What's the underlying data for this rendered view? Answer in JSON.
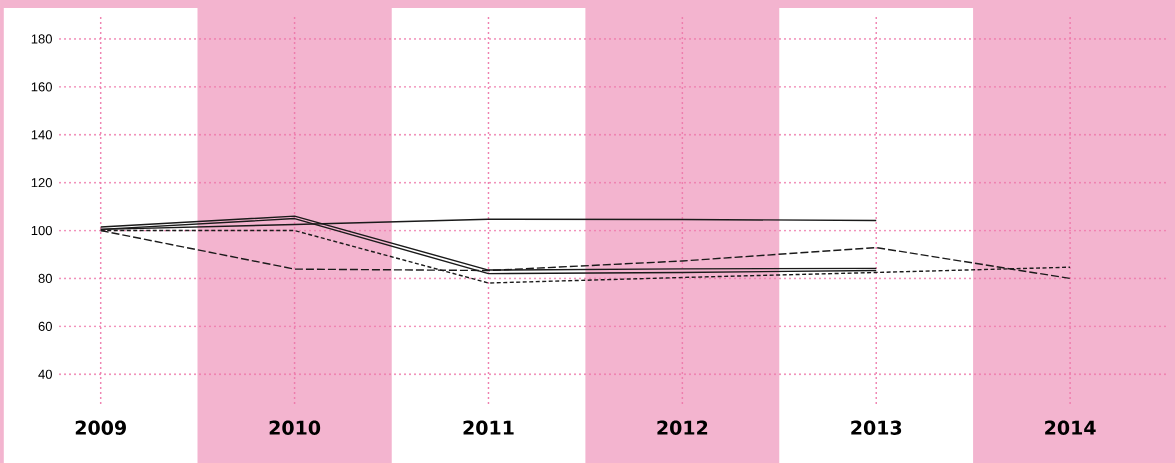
{
  "chart_data": {
    "type": "line",
    "categories": [
      "2009",
      "2010",
      "2011",
      "2012",
      "2013",
      "2014"
    ],
    "ylim": [
      28,
      190
    ],
    "yticks": [
      40,
      60,
      80,
      100,
      120,
      140,
      160,
      180
    ],
    "grid": true,
    "series": [
      {
        "color": "#1a1a1a",
        "line_style": "solid",
        "values": [
          100.5,
          102.5,
          104.7,
          104.6,
          104.2,
          null
        ]
      },
      {
        "color": "#1a1a1a",
        "line_style": "solid",
        "values": [
          101.5,
          106,
          83.5,
          84,
          84.2,
          null
        ]
      },
      {
        "color": "#1a1a1a",
        "line_style": "solid",
        "values": [
          100.5,
          105,
          82,
          82.5,
          83.3,
          null
        ]
      },
      {
        "color": "#1a1a1a",
        "line_style": "dashed",
        "values": [
          100,
          83.9,
          83.3,
          87.3,
          92.9,
          80
        ]
      },
      {
        "color": "#1a1a1a",
        "line_style": "dotted",
        "values": [
          100,
          100,
          78.1,
          80.4,
          82.5,
          84.7
        ]
      }
    ]
  }
}
